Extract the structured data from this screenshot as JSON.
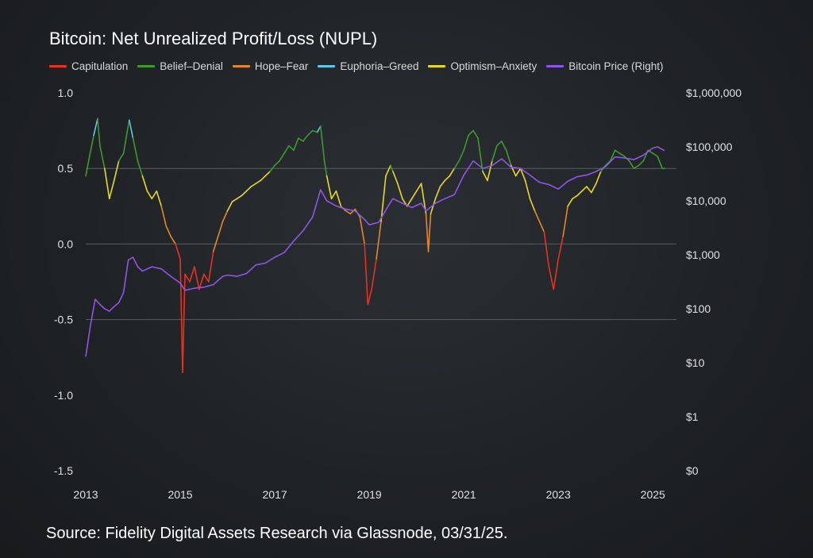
{
  "chart_data": {
    "type": "line",
    "title": "Bitcoin: Net Unrealized Profit/Loss (NUPL)",
    "source": "Source: Fidelity Digital Assets Research via Glassnode, 03/31/25.",
    "x_ticks": [
      "2013",
      "2015",
      "2017",
      "2019",
      "2021",
      "2023",
      "2025"
    ],
    "x_tick_years": [
      2013,
      2015,
      2017,
      2019,
      2021,
      2023,
      2025
    ],
    "xlim": [
      2013.0,
      2025.5
    ],
    "y_left_ticks": [
      "1.0",
      "0.5",
      "0.0",
      "-0.5",
      "-1.0",
      "-1.5"
    ],
    "y_left_values": [
      1.0,
      0.5,
      0.0,
      -0.5,
      -1.0,
      -1.5
    ],
    "ylim_left": [
      -1.5,
      1.0
    ],
    "y_right_ticks": [
      "$1,000,000",
      "$100,000",
      "$10,000",
      "$1,000",
      "$100",
      "$10",
      "$1",
      "$0"
    ],
    "y_right_log_values": [
      6,
      5,
      4,
      3,
      2,
      1,
      0,
      -1
    ],
    "ylim_right_log10": [
      -1,
      6
    ],
    "grid_lines_at": [
      0.5,
      0.0,
      -0.5
    ],
    "colors": {
      "capitulation": "#e8321f",
      "belief_denial": "#3f9a2c",
      "hope_fear": "#e0882a",
      "euphoria_greed": "#5cc8f0",
      "optimism_anxiety": "#e6d82a",
      "price": "#8f55e8",
      "grid": "#5a5e62"
    },
    "legend": [
      {
        "label": "Capitulation",
        "key": "capitulation"
      },
      {
        "label": "Belief–Denial",
        "key": "belief_denial"
      },
      {
        "label": "Hope–Fear",
        "key": "hope_fear"
      },
      {
        "label": "Euphoria–Greed",
        "key": "euphoria_greed"
      },
      {
        "label": "Optimism–Anxiety",
        "key": "optimism_anxiety"
      },
      {
        "label": "Bitcoin Price (Right)",
        "key": "price"
      }
    ],
    "series": [
      {
        "name": "NUPL",
        "x": [
          2013.0,
          2013.08,
          2013.17,
          2013.25,
          2013.3,
          2013.4,
          2013.5,
          2013.6,
          2013.7,
          2013.8,
          2013.92,
          2014.0,
          2014.1,
          2014.2,
          2014.3,
          2014.4,
          2014.5,
          2014.6,
          2014.7,
          2014.8,
          2014.9,
          2015.0,
          2015.05,
          2015.1,
          2015.2,
          2015.3,
          2015.4,
          2015.5,
          2015.6,
          2015.7,
          2015.8,
          2015.9,
          2016.0,
          2016.1,
          2016.2,
          2016.3,
          2016.4,
          2016.5,
          2016.6,
          2016.7,
          2016.8,
          2016.9,
          2017.0,
          2017.1,
          2017.2,
          2017.3,
          2017.4,
          2017.5,
          2017.6,
          2017.7,
          2017.8,
          2017.9,
          2017.97,
          2018.05,
          2018.1,
          2018.2,
          2018.3,
          2018.4,
          2018.5,
          2018.6,
          2018.7,
          2018.8,
          2018.9,
          2018.97,
          2019.05,
          2019.15,
          2019.25,
          2019.35,
          2019.45,
          2019.5,
          2019.6,
          2019.7,
          2019.8,
          2019.9,
          2020.0,
          2020.1,
          2020.2,
          2020.25,
          2020.3,
          2020.4,
          2020.5,
          2020.6,
          2020.7,
          2020.8,
          2020.9,
          2021.0,
          2021.1,
          2021.2,
          2021.3,
          2021.4,
          2021.5,
          2021.6,
          2021.7,
          2021.8,
          2021.9,
          2022.0,
          2022.1,
          2022.2,
          2022.3,
          2022.4,
          2022.5,
          2022.6,
          2022.7,
          2022.8,
          2022.9,
          2023.0,
          2023.1,
          2023.2,
          2023.3,
          2023.4,
          2023.5,
          2023.6,
          2023.7,
          2023.8,
          2023.9,
          2024.0,
          2024.1,
          2024.2,
          2024.3,
          2024.4,
          2024.5,
          2024.6,
          2024.7,
          2024.8,
          2024.9,
          2025.0,
          2025.1,
          2025.2,
          2025.25
        ],
        "y": [
          0.45,
          0.58,
          0.72,
          0.83,
          0.65,
          0.5,
          0.3,
          0.42,
          0.55,
          0.6,
          0.82,
          0.7,
          0.55,
          0.45,
          0.35,
          0.3,
          0.35,
          0.25,
          0.12,
          0.05,
          0.0,
          -0.1,
          -0.85,
          -0.2,
          -0.25,
          -0.15,
          -0.3,
          -0.2,
          -0.25,
          -0.05,
          0.05,
          0.15,
          0.22,
          0.28,
          0.3,
          0.32,
          0.35,
          0.38,
          0.4,
          0.42,
          0.45,
          0.48,
          0.52,
          0.55,
          0.6,
          0.65,
          0.62,
          0.7,
          0.68,
          0.72,
          0.75,
          0.74,
          0.78,
          0.55,
          0.45,
          0.3,
          0.35,
          0.25,
          0.22,
          0.2,
          0.23,
          0.18,
          0.0,
          -0.4,
          -0.3,
          -0.1,
          0.15,
          0.45,
          0.52,
          0.48,
          0.4,
          0.3,
          0.25,
          0.3,
          0.35,
          0.4,
          0.2,
          -0.05,
          0.2,
          0.3,
          0.38,
          0.42,
          0.45,
          0.5,
          0.55,
          0.62,
          0.72,
          0.75,
          0.7,
          0.48,
          0.42,
          0.55,
          0.65,
          0.68,
          0.62,
          0.52,
          0.45,
          0.5,
          0.42,
          0.3,
          0.22,
          0.15,
          0.08,
          -0.15,
          -0.3,
          -0.1,
          0.05,
          0.25,
          0.3,
          0.32,
          0.35,
          0.38,
          0.34,
          0.4,
          0.48,
          0.52,
          0.55,
          0.62,
          0.6,
          0.58,
          0.55,
          0.5,
          0.52,
          0.55,
          0.62,
          0.6,
          0.58,
          0.5,
          0.5
        ],
        "phase_thresholds": {
          "capitulation": "< 0",
          "hope_fear": "0 to 0.25",
          "optimism_anxiety": "0.25 to 0.5",
          "belief_denial": "0.5 to 0.75",
          "euphoria_greed": "> 0.75"
        }
      },
      {
        "name": "Bitcoin Price (Right)",
        "x": [
          2013.0,
          2013.1,
          2013.2,
          2013.3,
          2013.4,
          2013.5,
          2013.6,
          2013.7,
          2013.8,
          2013.9,
          2014.0,
          2014.1,
          2014.2,
          2014.4,
          2014.6,
          2014.8,
          2015.0,
          2015.1,
          2015.3,
          2015.5,
          2015.7,
          2015.9,
          2016.0,
          2016.2,
          2016.4,
          2016.6,
          2016.8,
          2017.0,
          2017.2,
          2017.4,
          2017.6,
          2017.8,
          2017.97,
          2018.1,
          2018.3,
          2018.5,
          2018.7,
          2018.9,
          2019.0,
          2019.2,
          2019.4,
          2019.5,
          2019.7,
          2019.9,
          2020.1,
          2020.2,
          2020.4,
          2020.6,
          2020.8,
          2021.0,
          2021.2,
          2021.4,
          2021.6,
          2021.8,
          2022.0,
          2022.2,
          2022.4,
          2022.6,
          2022.8,
          2023.0,
          2023.2,
          2023.4,
          2023.6,
          2023.8,
          2024.0,
          2024.2,
          2024.4,
          2024.6,
          2024.8,
          2025.0,
          2025.1,
          2025.25
        ],
        "y": [
          13,
          50,
          150,
          120,
          100,
          90,
          110,
          130,
          200,
          800,
          900,
          600,
          500,
          600,
          550,
          400,
          300,
          220,
          240,
          250,
          280,
          400,
          420,
          400,
          450,
          650,
          700,
          900,
          1100,
          1800,
          2800,
          5000,
          16000,
          10000,
          8000,
          7000,
          6500,
          4500,
          3600,
          4000,
          8000,
          11000,
          9000,
          7500,
          9000,
          6500,
          9000,
          11000,
          13000,
          30000,
          55000,
          40000,
          45000,
          60000,
          42000,
          40000,
          30000,
          22000,
          20000,
          16500,
          23000,
          28000,
          30000,
          35000,
          43000,
          65000,
          62000,
          58000,
          70000,
          95000,
          100000,
          85000
        ]
      }
    ]
  }
}
